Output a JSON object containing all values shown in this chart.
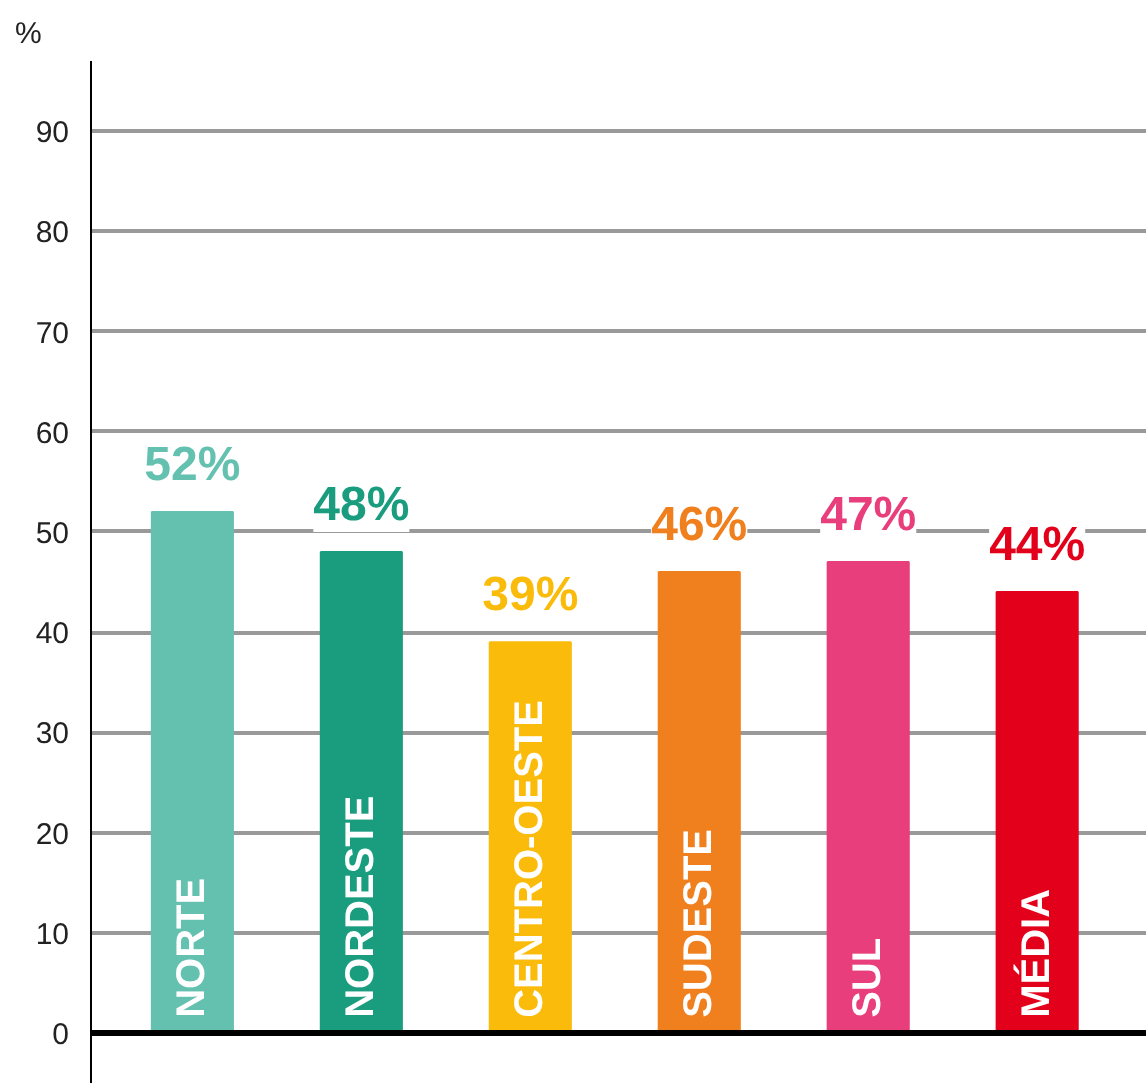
{
  "chart_data": {
    "type": "bar",
    "ylabel": "%",
    "categories": [
      "NORTE",
      "NORDESTE",
      "CENTRO-OESTE",
      "SUDESTE",
      "SUL",
      "MÉDIA"
    ],
    "values": [
      52,
      48,
      39,
      46,
      47,
      44
    ],
    "colors": [
      "#64c1b0",
      "#1a9d7f",
      "#fbbb0b",
      "#f07f1e",
      "#e83e7b",
      "#e3001b"
    ],
    "ylim": [
      -5,
      97
    ],
    "yticks": [
      0,
      10,
      20,
      30,
      40,
      50,
      60,
      70,
      80,
      90
    ],
    "value_labels": [
      "52%",
      "48%",
      "39%",
      "46%",
      "47%",
      "44%"
    ],
    "grid": "y"
  }
}
